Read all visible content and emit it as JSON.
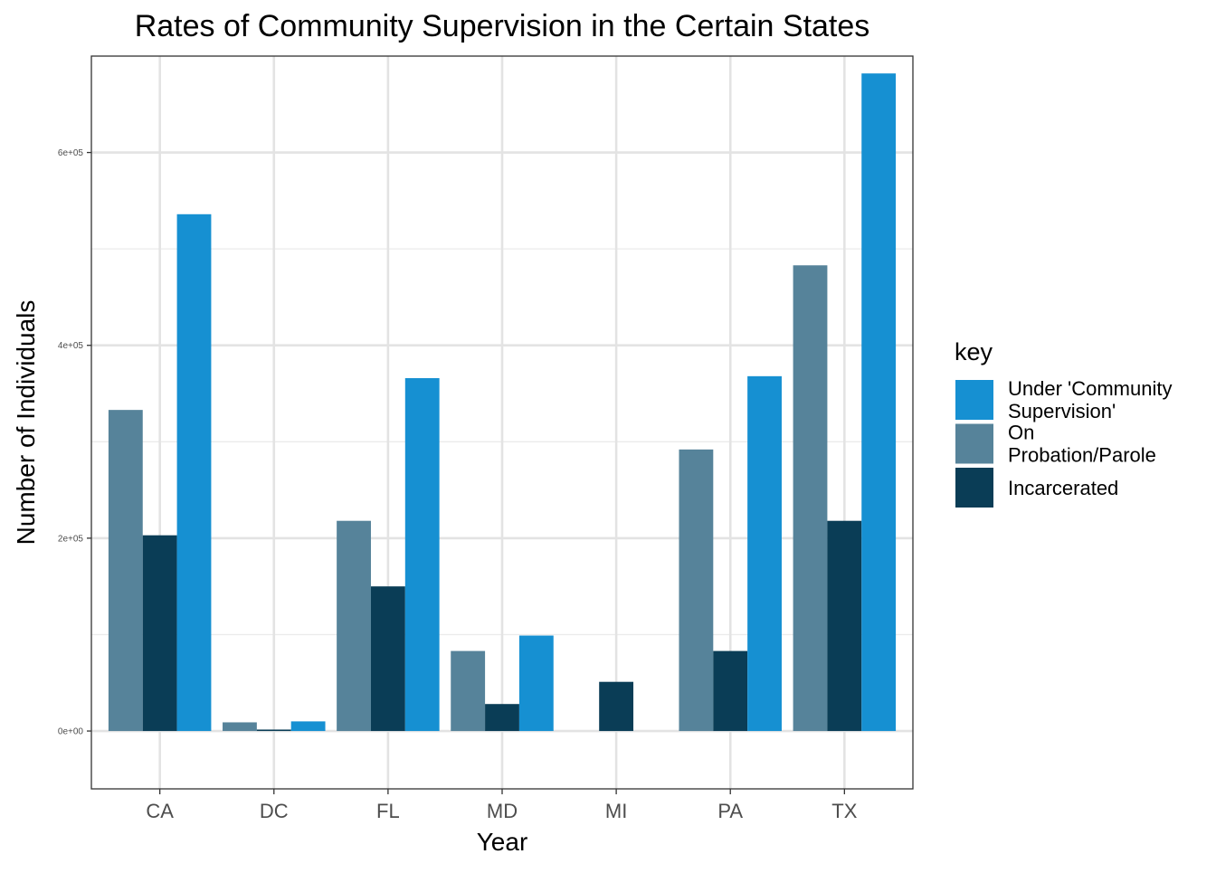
{
  "chart_data": {
    "type": "bar",
    "title": "Rates of Community Supervision in the Certain States",
    "xlabel": "Year",
    "ylabel": "Number of Individuals",
    "categories": [
      "CA",
      "DC",
      "FL",
      "MD",
      "MI",
      "PA",
      "TX"
    ],
    "ylim": [
      -60000,
      700000
    ],
    "y_ticks": [
      0,
      200000,
      400000,
      600000
    ],
    "y_tick_labels": [
      "0e+00",
      "2e+05",
      "4e+05",
      "6e+05"
    ],
    "grid": true,
    "legend_position": "right",
    "legend_title": "key",
    "series": [
      {
        "name": "On Probation/Parole",
        "color": "#56839A",
        "values": [
          333000,
          9000,
          218000,
          83000,
          0,
          292000,
          483000
        ]
      },
      {
        "name": "Incarcerated",
        "color": "#0A3D56",
        "values": [
          203000,
          1500,
          150000,
          28000,
          51000,
          83000,
          218000
        ]
      },
      {
        "name": "Under 'Community Supervision'",
        "color": "#1690D2",
        "values": [
          536000,
          10000,
          366000,
          99000,
          0,
          368000,
          682000
        ]
      }
    ],
    "legend_order": [
      2,
      0,
      1
    ],
    "legend_labels": [
      [
        "Under 'Community",
        "Supervision'"
      ],
      [
        "On",
        "Probation/Parole"
      ],
      [
        "Incarcerated"
      ]
    ]
  }
}
